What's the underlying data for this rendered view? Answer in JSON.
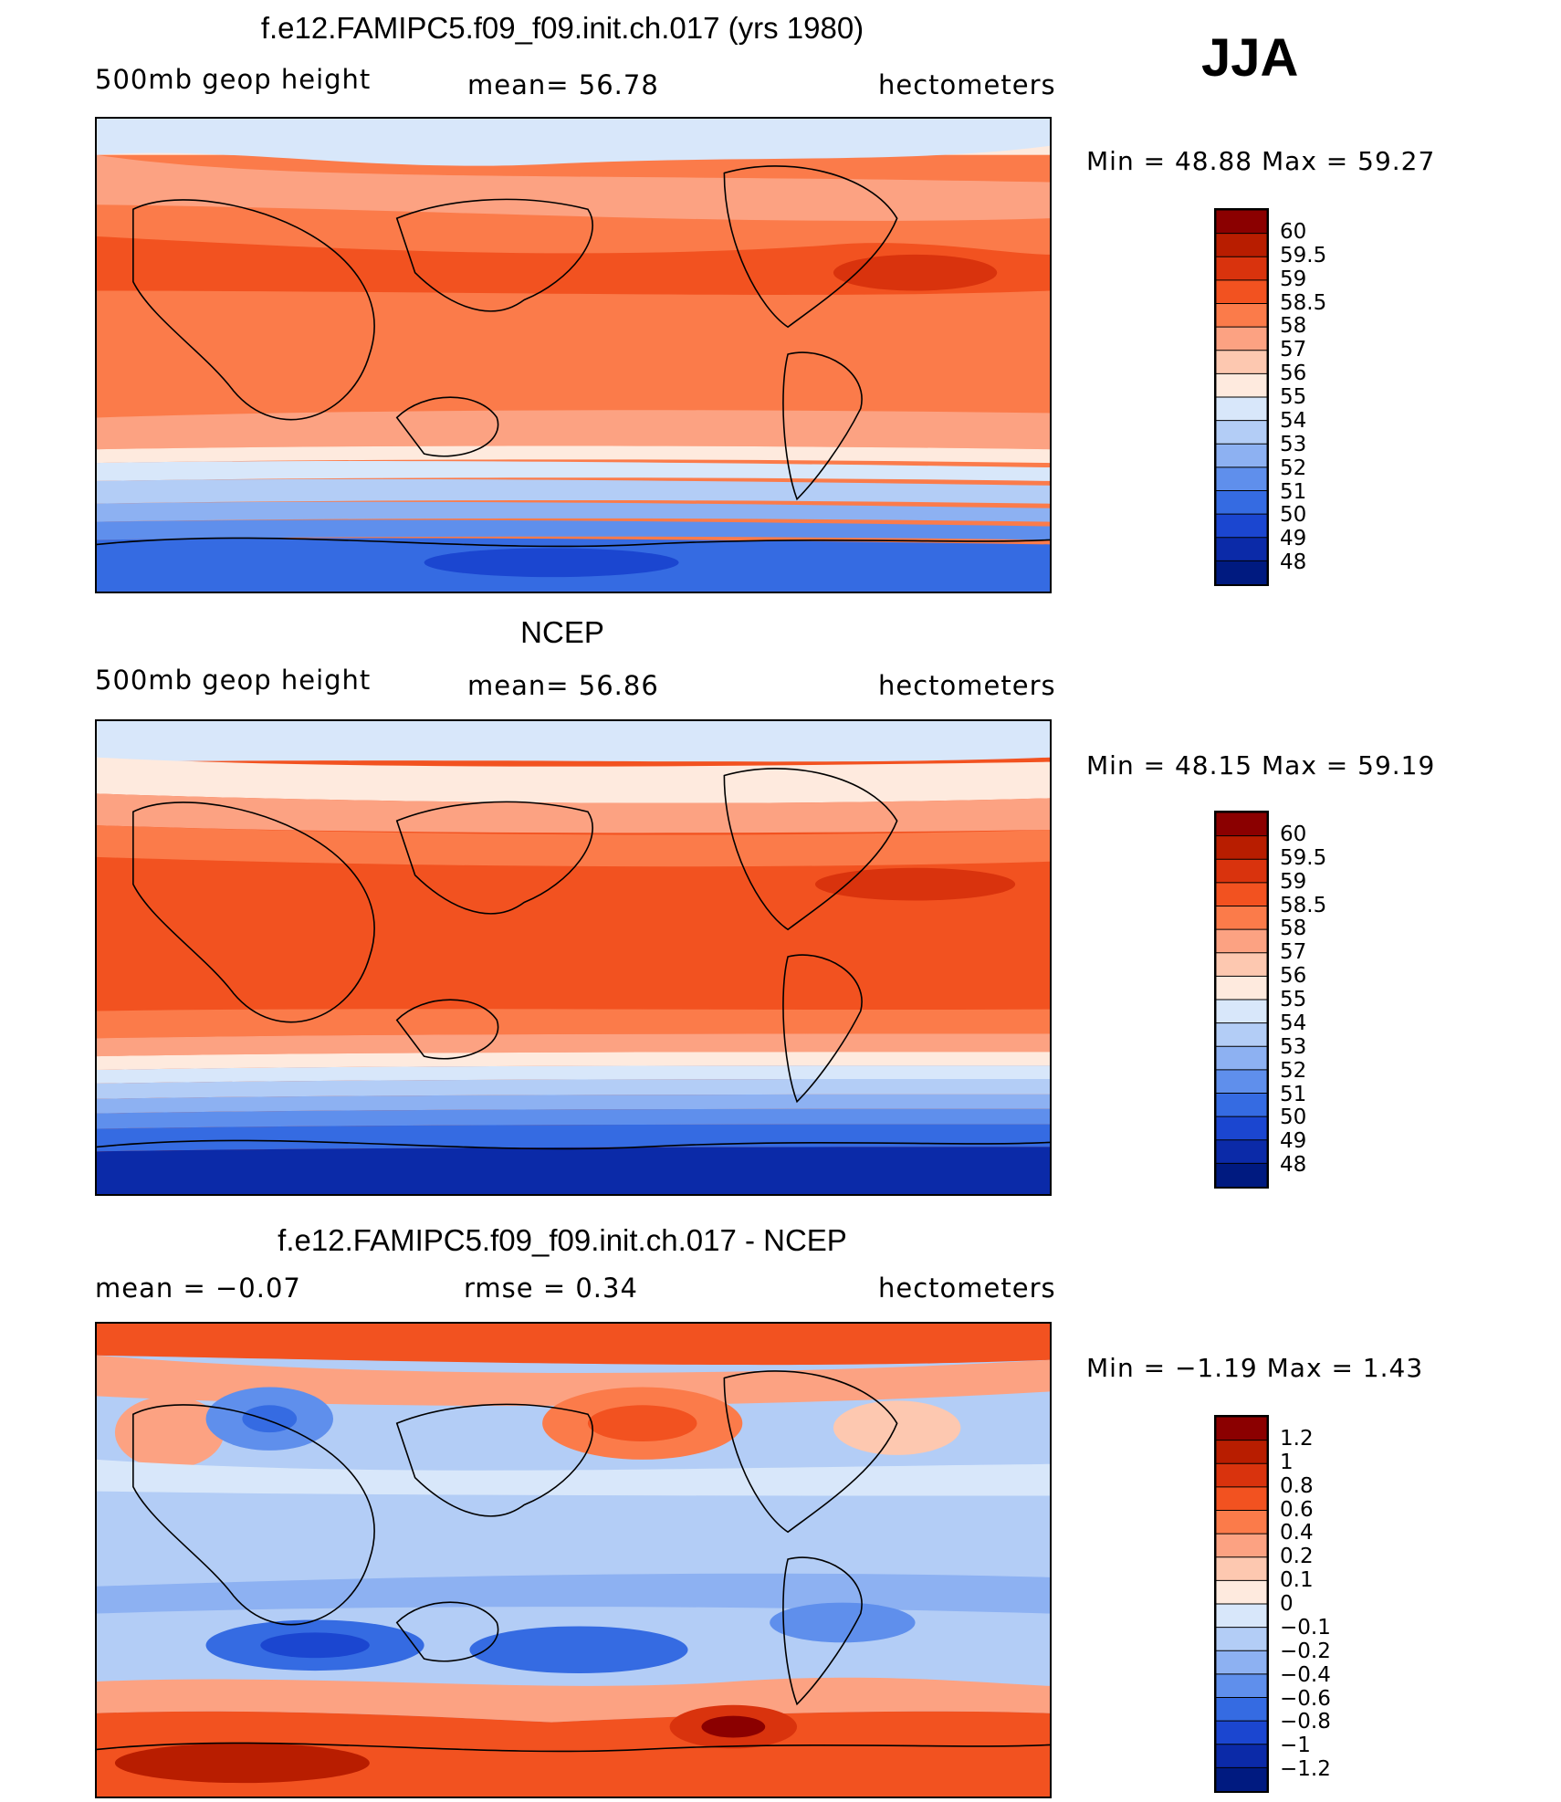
{
  "season": "JJA",
  "panels": [
    {
      "title": "f.e12.FAMIPC5.f09_f09.init.ch.017 (yrs 1980)",
      "left_label": "500mb  geop  height",
      "center_label": "mean=   56.78",
      "right_label": "hectometers",
      "minmax": "Min  =    48.88  Max  =    59.27",
      "colorbar_labels": [
        "60",
        "59.5",
        "59",
        "58.5",
        "58",
        "57",
        "56",
        "55",
        "54",
        "53",
        "52",
        "51",
        "50",
        "49",
        "48"
      ]
    },
    {
      "title": "NCEP",
      "left_label": "500mb  geop  height",
      "center_label": "mean=   56.86",
      "right_label": "hectometers",
      "minmax": "Min  =    48.15  Max  =    59.19",
      "colorbar_labels": [
        "60",
        "59.5",
        "59",
        "58.5",
        "58",
        "57",
        "56",
        "55",
        "54",
        "53",
        "52",
        "51",
        "50",
        "49",
        "48"
      ]
    },
    {
      "title": "f.e12.FAMIPC5.f09_f09.init.ch.017 - NCEP",
      "left_label": "mean  =    −0.07",
      "center_label": "rmse  =     0.34",
      "right_label": "hectometers",
      "minmax": "Min  =    −1.19  Max  =     1.43",
      "colorbar_labels": [
        "1.2",
        "1",
        "0.8",
        "0.6",
        "0.4",
        "0.2",
        "0.1",
        "0",
        "−0.1",
        "−0.2",
        "−0.4",
        "−0.6",
        "−0.8",
        "−1",
        "−1.2"
      ]
    }
  ],
  "colorbar_colors": [
    "#8b0000",
    "#b81d00",
    "#d9330d",
    "#f25220",
    "#fb7b4a",
    "#fca282",
    "#fdc8b0",
    "#feeade",
    "#d8e7fa",
    "#b3cdf6",
    "#8db1f2",
    "#5f8fec",
    "#356be2",
    "#1b46d0",
    "#0b2aa8",
    "#001a80"
  ],
  "color_ramp_note": "warm-to-cool"
}
